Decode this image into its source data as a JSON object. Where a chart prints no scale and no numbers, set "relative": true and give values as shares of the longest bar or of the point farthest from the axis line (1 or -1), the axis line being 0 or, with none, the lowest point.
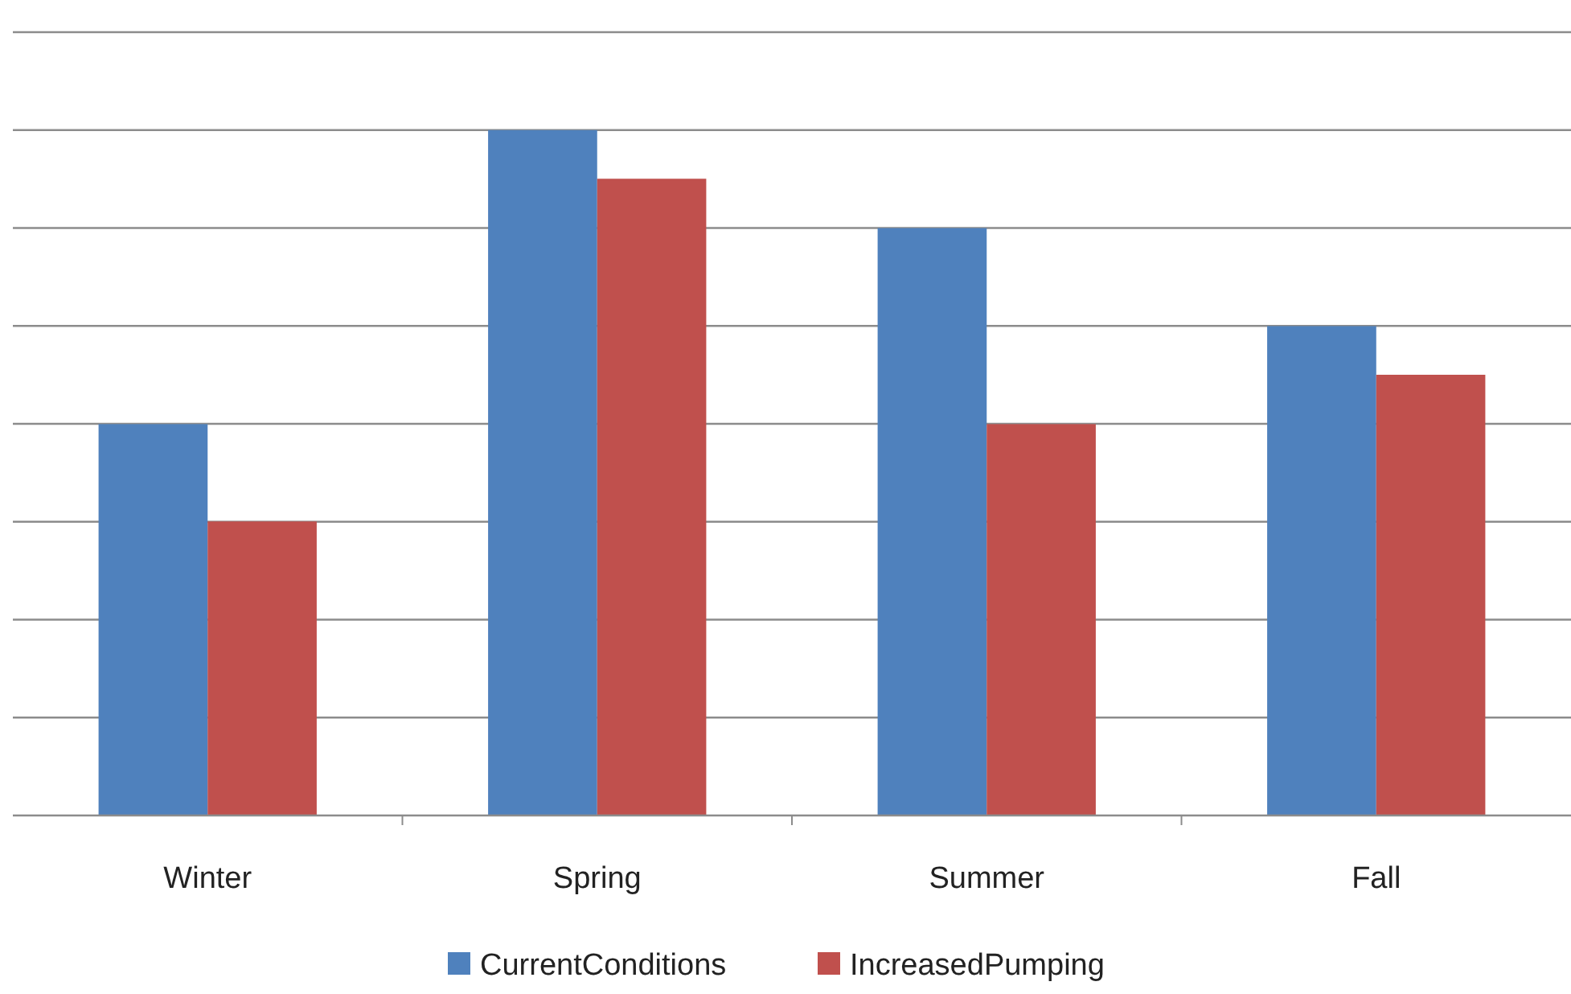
{
  "chart_data": {
    "type": "bar",
    "relative": true,
    "categories": [
      "Winter",
      "Spring",
      "Summer",
      "Fall"
    ],
    "series": [
      {
        "name": "CurrentConditions",
        "color": "#4f81bd",
        "values": [
          0.571,
          1,
          0.857,
          0.714
        ]
      },
      {
        "name": "IncreasedPumping",
        "color": "#c0504d",
        "values": [
          0.429,
          0.929,
          0.571,
          0.643
        ]
      }
    ],
    "grid": "y",
    "legend": "bottom"
  }
}
